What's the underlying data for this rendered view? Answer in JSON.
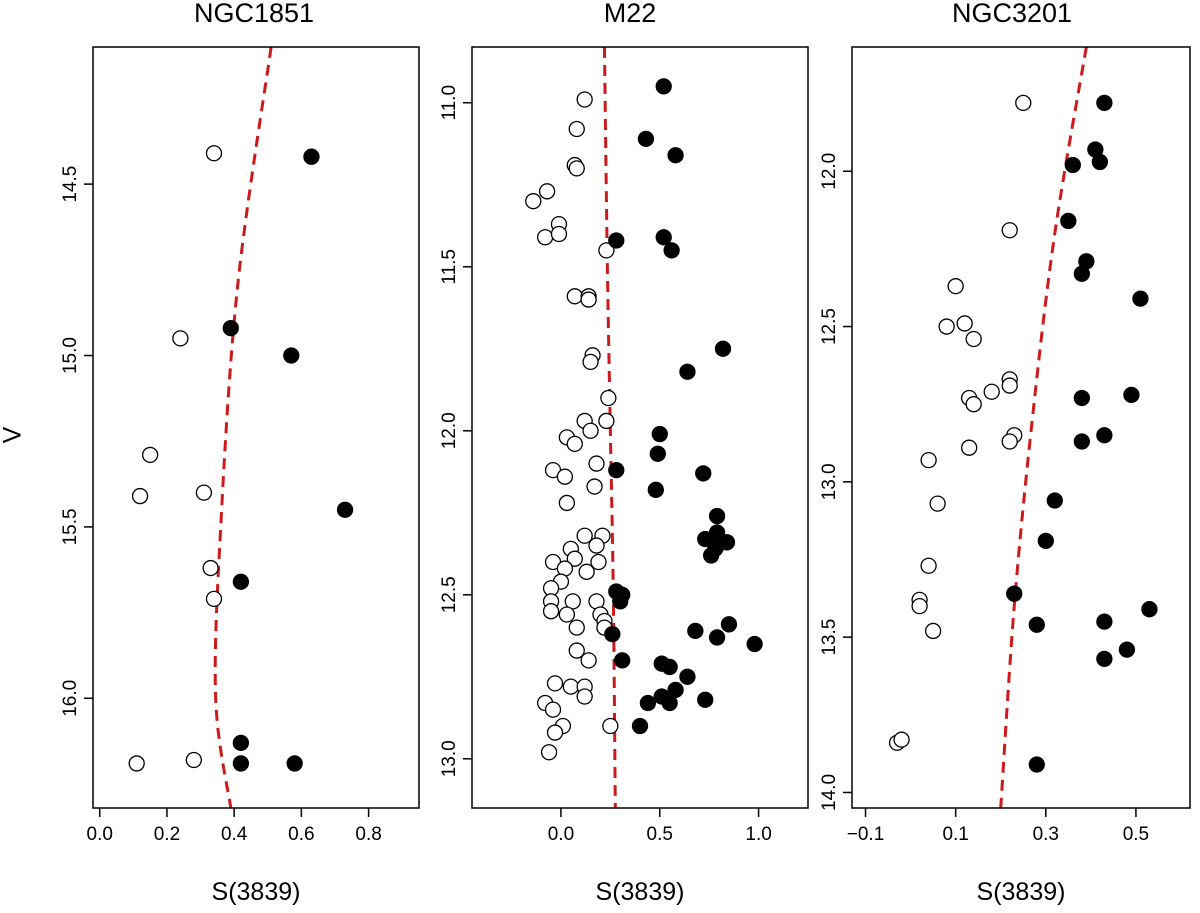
{
  "chart_data": [
    {
      "type": "scatter",
      "title": "NGC1851",
      "xlabel": "S(3839)",
      "ylabel": "V",
      "xlim": [
        -0.02,
        0.95
      ],
      "ylim": [
        16.32,
        14.1
      ],
      "y_reversed": true,
      "x_ticks": [
        "0.0",
        "0.2",
        "0.4",
        "0.6",
        "0.8"
      ],
      "y_ticks": [
        "14.5",
        "15.0",
        "15.5",
        "16.0"
      ],
      "grid": false,
      "series": [
        {
          "marker": "open",
          "points": [
            [
              0.34,
              14.41
            ],
            [
              0.24,
              14.95
            ],
            [
              0.15,
              15.29
            ],
            [
              0.12,
              15.41
            ],
            [
              0.31,
              15.4
            ],
            [
              0.33,
              15.62
            ],
            [
              0.34,
              15.71
            ],
            [
              0.11,
              16.19
            ],
            [
              0.28,
              16.18
            ]
          ]
        },
        {
          "marker": "filled",
          "points": [
            [
              0.63,
              14.42
            ],
            [
              0.39,
              14.92
            ],
            [
              0.57,
              15.0
            ],
            [
              0.73,
              15.45
            ],
            [
              0.42,
              15.66
            ],
            [
              0.42,
              16.13
            ],
            [
              0.42,
              16.19
            ],
            [
              0.58,
              16.19
            ]
          ]
        }
      ],
      "boundary_line": {
        "style": "dashed",
        "color": "#cc1a1a",
        "points": [
          [
            0.51,
            14.1
          ],
          [
            0.41,
            14.8
          ],
          [
            0.36,
            15.5
          ],
          [
            0.345,
            16.0
          ],
          [
            0.39,
            16.32
          ]
        ]
      }
    },
    {
      "type": "scatter",
      "title": "M22",
      "xlabel": "S(3839)",
      "ylabel": "",
      "xlim": [
        -0.45,
        1.25
      ],
      "ylim": [
        13.15,
        10.83
      ],
      "y_reversed": true,
      "x_ticks": [
        "0.0",
        "0.5",
        "1.0"
      ],
      "y_ticks": [
        "11.0",
        "11.5",
        "12.0",
        "12.5",
        "13.0"
      ],
      "grid": false,
      "series": [
        {
          "marker": "open",
          "points": [
            [
              0.12,
              10.99
            ],
            [
              0.08,
              11.08
            ],
            [
              0.07,
              11.19
            ],
            [
              0.08,
              11.2
            ],
            [
              -0.07,
              11.27
            ],
            [
              -0.14,
              11.3
            ],
            [
              -0.01,
              11.37
            ],
            [
              -0.08,
              11.41
            ],
            [
              -0.01,
              11.4
            ],
            [
              0.23,
              11.45
            ],
            [
              0.07,
              11.59
            ],
            [
              0.14,
              11.59
            ],
            [
              0.14,
              11.6
            ],
            [
              0.16,
              11.77
            ],
            [
              0.15,
              11.79
            ],
            [
              0.24,
              11.9
            ],
            [
              0.12,
              11.97
            ],
            [
              0.15,
              12.0
            ],
            [
              0.23,
              11.97
            ],
            [
              0.03,
              12.02
            ],
            [
              0.07,
              12.04
            ],
            [
              -0.04,
              12.12
            ],
            [
              0.18,
              12.1
            ],
            [
              0.02,
              12.14
            ],
            [
              0.17,
              12.17
            ],
            [
              0.03,
              12.22
            ],
            [
              0.21,
              12.32
            ],
            [
              0.12,
              12.32
            ],
            [
              0.18,
              12.35
            ],
            [
              0.05,
              12.36
            ],
            [
              0.07,
              12.39
            ],
            [
              0.19,
              12.4
            ],
            [
              -0.04,
              12.4
            ],
            [
              0.02,
              12.42
            ],
            [
              0.13,
              12.43
            ],
            [
              0.0,
              12.46
            ],
            [
              -0.05,
              12.48
            ],
            [
              0.06,
              12.52
            ],
            [
              -0.05,
              12.52
            ],
            [
              0.18,
              12.52
            ],
            [
              -0.05,
              12.55
            ],
            [
              0.03,
              12.56
            ],
            [
              0.2,
              12.56
            ],
            [
              0.22,
              12.58
            ],
            [
              0.08,
              12.6
            ],
            [
              0.22,
              12.6
            ],
            [
              0.08,
              12.67
            ],
            [
              0.14,
              12.7
            ],
            [
              -0.03,
              12.77
            ],
            [
              0.05,
              12.78
            ],
            [
              0.12,
              12.78
            ],
            [
              0.12,
              12.81
            ],
            [
              -0.08,
              12.83
            ],
            [
              -0.04,
              12.85
            ],
            [
              0.01,
              12.9
            ],
            [
              -0.03,
              12.92
            ],
            [
              0.25,
              12.9
            ],
            [
              -0.06,
              12.98
            ]
          ]
        },
        {
          "marker": "filled",
          "points": [
            [
              0.52,
              10.95
            ],
            [
              0.43,
              11.11
            ],
            [
              0.58,
              11.16
            ],
            [
              0.28,
              11.42
            ],
            [
              0.52,
              11.41
            ],
            [
              0.56,
              11.45
            ],
            [
              0.82,
              11.75
            ],
            [
              0.64,
              11.82
            ],
            [
              0.5,
              12.01
            ],
            [
              0.49,
              12.07
            ],
            [
              0.28,
              12.12
            ],
            [
              0.72,
              12.13
            ],
            [
              0.48,
              12.18
            ],
            [
              0.79,
              12.26
            ],
            [
              0.79,
              12.31
            ],
            [
              0.73,
              12.33
            ],
            [
              0.84,
              12.34
            ],
            [
              0.79,
              12.35
            ],
            [
              0.78,
              12.36
            ],
            [
              0.76,
              12.38
            ],
            [
              0.28,
              12.49
            ],
            [
              0.31,
              12.5
            ],
            [
              0.3,
              12.52
            ],
            [
              0.26,
              12.62
            ],
            [
              0.85,
              12.59
            ],
            [
              0.68,
              12.61
            ],
            [
              0.79,
              12.63
            ],
            [
              0.98,
              12.65
            ],
            [
              0.31,
              12.7
            ],
            [
              0.51,
              12.71
            ],
            [
              0.55,
              12.72
            ],
            [
              0.64,
              12.75
            ],
            [
              0.58,
              12.79
            ],
            [
              0.51,
              12.81
            ],
            [
              0.55,
              12.83
            ],
            [
              0.44,
              12.83
            ],
            [
              0.73,
              12.82
            ],
            [
              0.4,
              12.9
            ]
          ]
        }
      ],
      "boundary_line": {
        "style": "dashed",
        "color": "#cc1a1a",
        "points": [
          [
            0.22,
            10.83
          ],
          [
            0.235,
            11.5
          ],
          [
            0.25,
            12.0
          ],
          [
            0.265,
            12.5
          ],
          [
            0.275,
            13.15
          ]
        ]
      }
    },
    {
      "type": "scatter",
      "title": "NGC3201",
      "xlabel": "S(3839)",
      "ylabel": "",
      "xlim": [
        -0.13,
        0.62
      ],
      "ylim": [
        14.05,
        11.6
      ],
      "y_reversed": true,
      "x_ticks": [
        "−0.1",
        "0.1",
        "0.3",
        "0.5"
      ],
      "y_ticks": [
        "12.0",
        "12.5",
        "13.0",
        "13.5",
        "14.0"
      ],
      "grid": false,
      "series": [
        {
          "marker": "open",
          "points": [
            [
              0.25,
              11.78
            ],
            [
              0.22,
              12.19
            ],
            [
              0.1,
              12.37
            ],
            [
              0.08,
              12.5
            ],
            [
              0.12,
              12.49
            ],
            [
              0.14,
              12.54
            ],
            [
              0.22,
              12.67
            ],
            [
              0.22,
              12.69
            ],
            [
              0.18,
              12.71
            ],
            [
              0.13,
              12.73
            ],
            [
              0.14,
              12.75
            ],
            [
              0.23,
              12.85
            ],
            [
              0.22,
              12.87
            ],
            [
              0.13,
              12.89
            ],
            [
              0.04,
              12.93
            ],
            [
              0.06,
              13.07
            ],
            [
              0.04,
              13.27
            ],
            [
              0.02,
              13.38
            ],
            [
              0.02,
              13.4
            ],
            [
              0.05,
              13.48
            ],
            [
              -0.03,
              13.84
            ],
            [
              -0.02,
              13.83
            ]
          ]
        },
        {
          "marker": "filled",
          "points": [
            [
              0.43,
              11.78
            ],
            [
              0.41,
              11.93
            ],
            [
              0.42,
              11.97
            ],
            [
              0.36,
              11.98
            ],
            [
              0.35,
              12.16
            ],
            [
              0.39,
              12.29
            ],
            [
              0.38,
              12.33
            ],
            [
              0.51,
              12.41
            ],
            [
              0.38,
              12.73
            ],
            [
              0.49,
              12.72
            ],
            [
              0.38,
              12.87
            ],
            [
              0.43,
              12.85
            ],
            [
              0.32,
              13.06
            ],
            [
              0.3,
              13.19
            ],
            [
              0.23,
              13.36
            ],
            [
              0.53,
              13.41
            ],
            [
              0.43,
              13.45
            ],
            [
              0.28,
              13.46
            ],
            [
              0.48,
              13.54
            ],
            [
              0.43,
              13.57
            ],
            [
              0.28,
              13.91
            ]
          ]
        }
      ],
      "boundary_line": {
        "style": "dashed",
        "color": "#cc1a1a",
        "points": [
          [
            0.39,
            11.6
          ],
          [
            0.32,
            12.2
          ],
          [
            0.27,
            12.8
          ],
          [
            0.23,
            13.4
          ],
          [
            0.2,
            14.05
          ]
        ]
      }
    }
  ]
}
